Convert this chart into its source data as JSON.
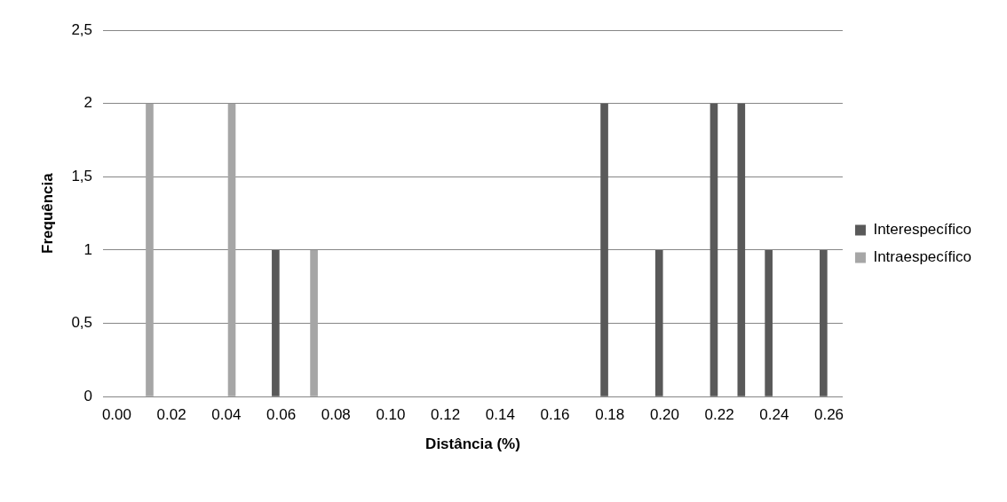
{
  "chart_data": {
    "type": "bar",
    "xlabel": "Distância (%)",
    "ylabel": "Frequência",
    "categories": [
      "0.00",
      null,
      "0.02",
      null,
      "0.04",
      null,
      "0.06",
      null,
      "0.08",
      null,
      "0.10",
      null,
      "0.12",
      null,
      "0.14",
      null,
      "0.16",
      null,
      "0.18",
      null,
      "0.20",
      null,
      "0.22",
      null,
      "0.24",
      null,
      "0.26"
    ],
    "series": [
      {
        "name": "Interespecífico",
        "color": "#595959",
        "values": [
          null,
          null,
          null,
          null,
          null,
          null,
          1,
          null,
          null,
          null,
          null,
          null,
          null,
          null,
          null,
          null,
          null,
          null,
          2,
          null,
          1,
          null,
          2,
          2,
          1,
          null,
          1
        ]
      },
      {
        "name": "Intraespecífico",
        "color": "#a6a6a6",
        "values": [
          null,
          2,
          null,
          null,
          2,
          null,
          null,
          1,
          null,
          null,
          null,
          null,
          null,
          null,
          null,
          null,
          null,
          null,
          null,
          null,
          null,
          null,
          null,
          null,
          null,
          null,
          null
        ]
      }
    ],
    "ylim": [
      0,
      2.5
    ],
    "yticks": [
      0,
      {
        "value": 0.5,
        "label": "0,5"
      },
      1,
      {
        "value": 1.5,
        "label": "1,5"
      },
      2,
      {
        "value": 2.5,
        "label": "2,5"
      }
    ],
    "grid": "y",
    "legend": "right"
  }
}
